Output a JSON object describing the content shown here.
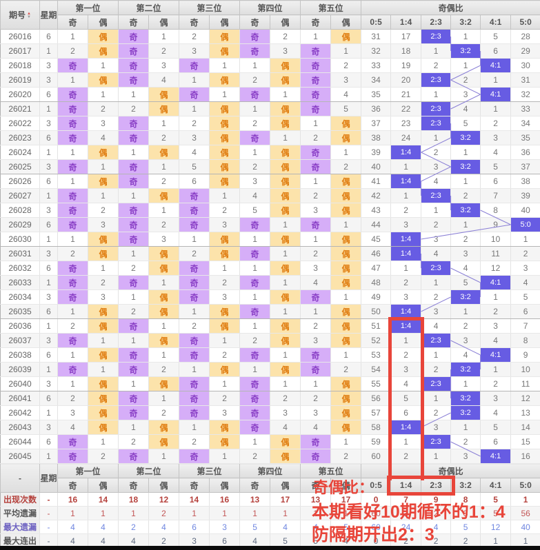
{
  "table": {
    "period_header": "期号",
    "week_header": "星期",
    "position_groups": [
      "第一位",
      "第二位",
      "第三位",
      "第四位",
      "第五位"
    ],
    "sub_headers": {
      "odd": "奇",
      "even": "偶"
    },
    "ratio_group_header": "奇偶比",
    "ratio_headers": [
      "0:5",
      "1:4",
      "2:3",
      "3:2",
      "4:1",
      "5:0"
    ],
    "rows": [
      {
        "period": "26016",
        "week": "6",
        "positions": [
          "1",
          "偶",
          "奇",
          "1",
          "2",
          "偶",
          "奇",
          "2",
          "1",
          "偶"
        ],
        "ratios": [
          "31",
          "17",
          "2:3",
          "1",
          "5",
          "28"
        ]
      },
      {
        "period": "26017",
        "week": "1",
        "positions": [
          "2",
          "偶",
          "奇",
          "2",
          "3",
          "偶",
          "奇",
          "3",
          "奇",
          "1"
        ],
        "ratios": [
          "32",
          "18",
          "1",
          "3:2",
          "6",
          "29"
        ]
      },
      {
        "period": "26018",
        "week": "3",
        "positions": [
          "奇",
          "1",
          "奇",
          "3",
          "奇",
          "1",
          "1",
          "偶",
          "奇",
          "2"
        ],
        "ratios": [
          "33",
          "19",
          "2",
          "1",
          "4:1",
          "30"
        ]
      },
      {
        "period": "26019",
        "week": "3",
        "positions": [
          "1",
          "偶",
          "奇",
          "4",
          "1",
          "偶",
          "2",
          "偶",
          "奇",
          "3"
        ],
        "ratios": [
          "34",
          "20",
          "2:3",
          "2",
          "1",
          "31"
        ]
      },
      {
        "period": "26020",
        "week": "6",
        "positions": [
          "奇",
          "1",
          "1",
          "偶",
          "奇",
          "1",
          "奇",
          "1",
          "奇",
          "4"
        ],
        "ratios": [
          "35",
          "21",
          "1",
          "3",
          "4:1",
          "32"
        ]
      },
      {
        "period": "26021",
        "week": "1",
        "positions": [
          "奇",
          "2",
          "2",
          "偶",
          "1",
          "偶",
          "1",
          "偶",
          "奇",
          "5"
        ],
        "ratios": [
          "36",
          "22",
          "2:3",
          "4",
          "1",
          "33"
        ]
      },
      {
        "period": "26022",
        "week": "3",
        "positions": [
          "奇",
          "3",
          "奇",
          "1",
          "2",
          "偶",
          "2",
          "偶",
          "1",
          "偶"
        ],
        "ratios": [
          "37",
          "23",
          "2:3",
          "5",
          "2",
          "34"
        ]
      },
      {
        "period": "26023",
        "week": "6",
        "positions": [
          "奇",
          "4",
          "奇",
          "2",
          "3",
          "偶",
          "奇",
          "1",
          "2",
          "偶"
        ],
        "ratios": [
          "38",
          "24",
          "1",
          "3:2",
          "3",
          "35"
        ]
      },
      {
        "period": "26024",
        "week": "1",
        "positions": [
          "1",
          "偶",
          "1",
          "偶",
          "4",
          "偶",
          "1",
          "偶",
          "奇",
          "1"
        ],
        "ratios": [
          "39",
          "1:4",
          "2",
          "1",
          "4",
          "36"
        ]
      },
      {
        "period": "26025",
        "week": "3",
        "positions": [
          "奇",
          "1",
          "奇",
          "1",
          "5",
          "偶",
          "2",
          "偶",
          "奇",
          "2"
        ],
        "ratios": [
          "40",
          "1",
          "3",
          "3:2",
          "5",
          "37"
        ]
      },
      {
        "period": "26026",
        "week": "6",
        "positions": [
          "1",
          "偶",
          "奇",
          "2",
          "6",
          "偶",
          "3",
          "偶",
          "1",
          "偶"
        ],
        "ratios": [
          "41",
          "1:4",
          "4",
          "1",
          "6",
          "38"
        ]
      },
      {
        "period": "26027",
        "week": "1",
        "positions": [
          "奇",
          "1",
          "1",
          "偶",
          "奇",
          "1",
          "4",
          "偶",
          "2",
          "偶"
        ],
        "ratios": [
          "42",
          "1",
          "2:3",
          "2",
          "7",
          "39"
        ]
      },
      {
        "period": "26028",
        "week": "3",
        "positions": [
          "奇",
          "2",
          "奇",
          "1",
          "奇",
          "2",
          "5",
          "偶",
          "3",
          "偶"
        ],
        "ratios": [
          "43",
          "2",
          "1",
          "3:2",
          "8",
          "40"
        ]
      },
      {
        "period": "26029",
        "week": "6",
        "positions": [
          "奇",
          "3",
          "奇",
          "2",
          "奇",
          "3",
          "奇",
          "1",
          "奇",
          "1"
        ],
        "ratios": [
          "44",
          "3",
          "2",
          "1",
          "9",
          "5:0"
        ]
      },
      {
        "period": "26030",
        "week": "1",
        "positions": [
          "1",
          "偶",
          "奇",
          "3",
          "1",
          "偶",
          "1",
          "偶",
          "1",
          "偶"
        ],
        "ratios": [
          "45",
          "1:4",
          "3",
          "2",
          "10",
          "1"
        ]
      },
      {
        "period": "26031",
        "week": "3",
        "positions": [
          "2",
          "偶",
          "1",
          "偶",
          "2",
          "偶",
          "奇",
          "1",
          "2",
          "偶"
        ],
        "ratios": [
          "46",
          "1:4",
          "4",
          "3",
          "11",
          "2"
        ]
      },
      {
        "period": "26032",
        "week": "6",
        "positions": [
          "奇",
          "1",
          "2",
          "偶",
          "奇",
          "1",
          "1",
          "偶",
          "3",
          "偶"
        ],
        "ratios": [
          "47",
          "1",
          "2:3",
          "4",
          "12",
          "3"
        ]
      },
      {
        "period": "26033",
        "week": "1",
        "positions": [
          "奇",
          "2",
          "奇",
          "1",
          "奇",
          "2",
          "奇",
          "1",
          "4",
          "偶"
        ],
        "ratios": [
          "48",
          "2",
          "1",
          "5",
          "4:1",
          "4"
        ]
      },
      {
        "period": "26034",
        "week": "3",
        "positions": [
          "奇",
          "3",
          "1",
          "偶",
          "奇",
          "3",
          "1",
          "偶",
          "奇",
          "1"
        ],
        "ratios": [
          "49",
          "3",
          "2",
          "3:2",
          "1",
          "5"
        ]
      },
      {
        "period": "26035",
        "week": "6",
        "positions": [
          "1",
          "偶",
          "2",
          "偶",
          "1",
          "偶",
          "奇",
          "1",
          "1",
          "偶"
        ],
        "ratios": [
          "50",
          "1:4",
          "3",
          "1",
          "2",
          "6"
        ]
      },
      {
        "period": "26036",
        "week": "1",
        "positions": [
          "2",
          "偶",
          "奇",
          "1",
          "2",
          "偶",
          "1",
          "偶",
          "2",
          "偶"
        ],
        "ratios": [
          "51",
          "1:4",
          "4",
          "2",
          "3",
          "7"
        ]
      },
      {
        "period": "26037",
        "week": "3",
        "positions": [
          "奇",
          "1",
          "1",
          "偶",
          "奇",
          "1",
          "2",
          "偶",
          "3",
          "偶"
        ],
        "ratios": [
          "52",
          "1",
          "2:3",
          "3",
          "4",
          "8"
        ]
      },
      {
        "period": "26038",
        "week": "6",
        "positions": [
          "1",
          "偶",
          "奇",
          "1",
          "奇",
          "2",
          "奇",
          "1",
          "奇",
          "1"
        ],
        "ratios": [
          "53",
          "2",
          "1",
          "4",
          "4:1",
          "9"
        ]
      },
      {
        "period": "26039",
        "week": "1",
        "positions": [
          "奇",
          "1",
          "奇",
          "2",
          "1",
          "偶",
          "1",
          "偶",
          "奇",
          "2"
        ],
        "ratios": [
          "54",
          "3",
          "2",
          "3:2",
          "1",
          "10"
        ]
      },
      {
        "period": "26040",
        "week": "3",
        "positions": [
          "1",
          "偶",
          "1",
          "偶",
          "奇",
          "1",
          "奇",
          "1",
          "1",
          "偶"
        ],
        "ratios": [
          "55",
          "4",
          "2:3",
          "1",
          "2",
          "11"
        ]
      },
      {
        "period": "26041",
        "week": "6",
        "positions": [
          "2",
          "偶",
          "奇",
          "1",
          "奇",
          "2",
          "奇",
          "2",
          "2",
          "偶"
        ],
        "ratios": [
          "56",
          "5",
          "1",
          "3:2",
          "3",
          "12"
        ]
      },
      {
        "period": "26042",
        "week": "1",
        "positions": [
          "3",
          "偶",
          "奇",
          "2",
          "奇",
          "3",
          "奇",
          "3",
          "3",
          "偶"
        ],
        "ratios": [
          "57",
          "6",
          "2",
          "3:2",
          "4",
          "13"
        ]
      },
      {
        "period": "26043",
        "week": "3",
        "positions": [
          "4",
          "偶",
          "1",
          "偶",
          "1",
          "偶",
          "奇",
          "4",
          "4",
          "偶"
        ],
        "ratios": [
          "58",
          "1:4",
          "3",
          "1",
          "5",
          "14"
        ]
      },
      {
        "period": "26044",
        "week": "6",
        "positions": [
          "奇",
          "1",
          "2",
          "偶",
          "2",
          "偶",
          "1",
          "偶",
          "奇",
          "1"
        ],
        "ratios": [
          "59",
          "1",
          "2:3",
          "2",
          "6",
          "15"
        ]
      },
      {
        "period": "26045",
        "week": "1",
        "positions": [
          "奇",
          "2",
          "奇",
          "1",
          "奇",
          "1",
          "2",
          "偶",
          "奇",
          "2"
        ],
        "ratios": [
          "60",
          "2",
          "1",
          "3",
          "4:1",
          "16"
        ]
      }
    ]
  },
  "footer": {
    "corner_label": "-",
    "week_placeholder": "-",
    "stats": [
      {
        "label": "出现次数",
        "positions": [
          "16",
          "14",
          "18",
          "12",
          "14",
          "16",
          "13",
          "17",
          "13",
          "17"
        ],
        "ratios": [
          "0",
          "7",
          "9",
          "8",
          "5",
          "1"
        ]
      },
      {
        "label": "平均遗漏",
        "positions": [
          "1",
          "1",
          "1",
          "2",
          "1",
          "1",
          "1",
          "1",
          "1",
          "1"
        ],
        "ratios": [
          "60",
          "3",
          "2",
          "3",
          "5",
          "56"
        ]
      },
      {
        "label": "最大遗漏",
        "positions": [
          "4",
          "4",
          "2",
          "4",
          "6",
          "3",
          "5",
          "4",
          "4",
          "5"
        ],
        "ratios": [
          "60",
          "24",
          "4",
          "5",
          "12",
          "40"
        ]
      },
      {
        "label": "最大连出",
        "positions": [
          "4",
          "4",
          "4",
          "2",
          "3",
          "6",
          "4",
          "5",
          "5",
          "4"
        ],
        "ratios": [
          "0",
          "2",
          "2",
          "2",
          "1",
          "1"
        ]
      }
    ]
  },
  "annotations": {
    "line1": "奇偶比：",
    "line2": "本期看好10期循环的1：4",
    "line3": "防隔期开出2：3"
  },
  "icons": {
    "sort_up": "▲",
    "sort_down": "▼"
  },
  "colors": {
    "odd_bg": "#d6aef8",
    "odd_text": "#8a3fc6",
    "even_bg": "#fce3ab",
    "even_text": "#e07d10",
    "ratio_hit_bg": "#675ce3",
    "ratio_hit_text": "#ffffff",
    "annotation_red": "#e8453a",
    "connector_line": "#8b80d6"
  }
}
